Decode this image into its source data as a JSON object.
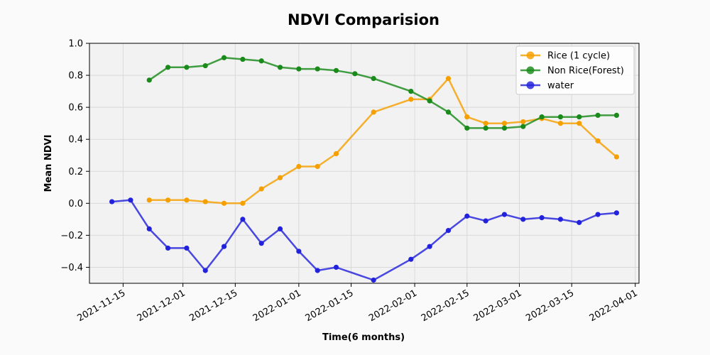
{
  "chart_data": {
    "type": "line",
    "title": "NDVI Comparision",
    "xlabel": "Time(6 months)",
    "ylabel": "Mean NDVI",
    "xlim": [
      "2021-11-06",
      "2022-04-02"
    ],
    "ylim": [
      -0.5,
      1.0
    ],
    "yticks": [
      -0.4,
      -0.2,
      0.0,
      0.2,
      0.4,
      0.6,
      0.8,
      1.0
    ],
    "ytick_labels": [
      "−0.4",
      "−0.2",
      "0.0",
      "0.2",
      "0.4",
      "0.6",
      "0.8",
      "1.0"
    ],
    "xticks": [
      "2021-11-15",
      "2021-12-01",
      "2021-12-15",
      "2022-01-01",
      "2022-01-15",
      "2022-02-01",
      "2022-02-15",
      "2022-03-01",
      "2022-03-15",
      "2022-04-01"
    ],
    "grid": true,
    "legend_position": "top-right",
    "series": [
      {
        "name": "Rice (1 cycle)",
        "color": "#f5a000",
        "x": [
          "2021-11-22",
          "2021-11-27",
          "2021-12-02",
          "2021-12-07",
          "2021-12-12",
          "2021-12-17",
          "2021-12-22",
          "2021-12-27",
          "2022-01-01",
          "2022-01-06",
          "2022-01-11",
          "2022-01-21",
          "2022-01-31",
          "2022-02-05",
          "2022-02-10",
          "2022-02-15",
          "2022-02-20",
          "2022-02-25",
          "2022-03-02",
          "2022-03-07",
          "2022-03-12",
          "2022-03-17",
          "2022-03-22",
          "2022-03-27"
        ],
        "y": [
          0.02,
          0.02,
          0.02,
          0.01,
          0.0,
          0.0,
          0.09,
          0.16,
          0.23,
          0.23,
          0.31,
          0.57,
          0.65,
          0.65,
          0.78,
          0.54,
          0.5,
          0.5,
          0.51,
          0.53,
          0.5,
          0.5,
          0.39,
          0.29
        ]
      },
      {
        "name": "Non Rice(Forest)",
        "color": "#1a8a1a",
        "x": [
          "2021-11-22",
          "2021-11-27",
          "2021-12-02",
          "2021-12-07",
          "2021-12-12",
          "2021-12-17",
          "2021-12-22",
          "2021-12-27",
          "2022-01-01",
          "2022-01-06",
          "2022-01-11",
          "2022-01-16",
          "2022-01-21",
          "2022-01-31",
          "2022-02-05",
          "2022-02-10",
          "2022-02-15",
          "2022-02-20",
          "2022-02-25",
          "2022-03-02",
          "2022-03-07",
          "2022-03-12",
          "2022-03-17",
          "2022-03-22",
          "2022-03-27"
        ],
        "y": [
          0.77,
          0.85,
          0.85,
          0.86,
          0.91,
          0.9,
          0.89,
          0.85,
          0.84,
          0.84,
          0.83,
          0.81,
          0.78,
          0.7,
          0.64,
          0.57,
          0.47,
          0.47,
          0.47,
          0.48,
          0.54,
          0.54,
          0.54,
          0.55,
          0.55
        ]
      },
      {
        "name": "water",
        "color": "#2222dd",
        "x": [
          "2021-11-12",
          "2021-11-17",
          "2021-11-22",
          "2021-11-27",
          "2021-12-02",
          "2021-12-07",
          "2021-12-12",
          "2021-12-17",
          "2021-12-22",
          "2021-12-27",
          "2022-01-01",
          "2022-01-06",
          "2022-01-11",
          "2022-01-21",
          "2022-01-31",
          "2022-02-05",
          "2022-02-10",
          "2022-02-15",
          "2022-02-20",
          "2022-02-25",
          "2022-03-02",
          "2022-03-07",
          "2022-03-12",
          "2022-03-17",
          "2022-03-22",
          "2022-03-27"
        ],
        "y": [
          0.01,
          0.02,
          -0.16,
          -0.28,
          -0.28,
          -0.42,
          -0.27,
          -0.1,
          -0.25,
          -0.16,
          -0.3,
          -0.42,
          -0.4,
          -0.48,
          -0.35,
          -0.27,
          -0.17,
          -0.08,
          -0.11,
          -0.07,
          -0.1,
          -0.09,
          -0.1,
          -0.12,
          -0.07,
          -0.06
        ]
      }
    ]
  }
}
